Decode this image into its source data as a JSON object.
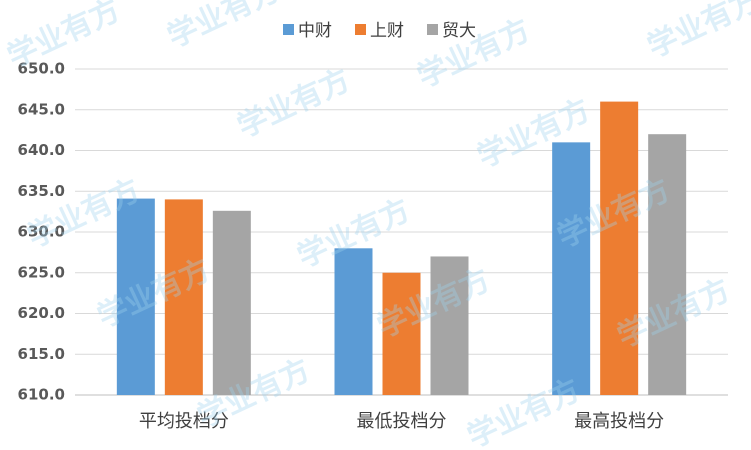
{
  "chart_data": {
    "type": "bar",
    "categories": [
      "平均投档分",
      "最低投档分",
      "最高投档分"
    ],
    "series": [
      {
        "name": "中财",
        "color": "#5b9bd5",
        "values": [
          634.1,
          628,
          641
        ]
      },
      {
        "name": "上财",
        "color": "#ed7d31",
        "values": [
          634,
          625,
          646
        ]
      },
      {
        "name": "贸大",
        "color": "#a5a5a5",
        "values": [
          632.6,
          627,
          642
        ]
      }
    ],
    "ylim": [
      610,
      650
    ],
    "yticks": [
      {
        "value": 610,
        "label": "610.0"
      },
      {
        "value": 615,
        "label": "615.0"
      },
      {
        "value": 620,
        "label": "620.0"
      },
      {
        "value": 625,
        "label": "625.0"
      },
      {
        "value": 630,
        "label": "630.0"
      },
      {
        "value": 635,
        "label": "635.0"
      },
      {
        "value": 640,
        "label": "640.0"
      },
      {
        "value": 645,
        "label": "645.0"
      },
      {
        "value": 650,
        "label": "650.0"
      }
    ],
    "grid": true,
    "legend": "top",
    "watermark": "学业有方"
  }
}
